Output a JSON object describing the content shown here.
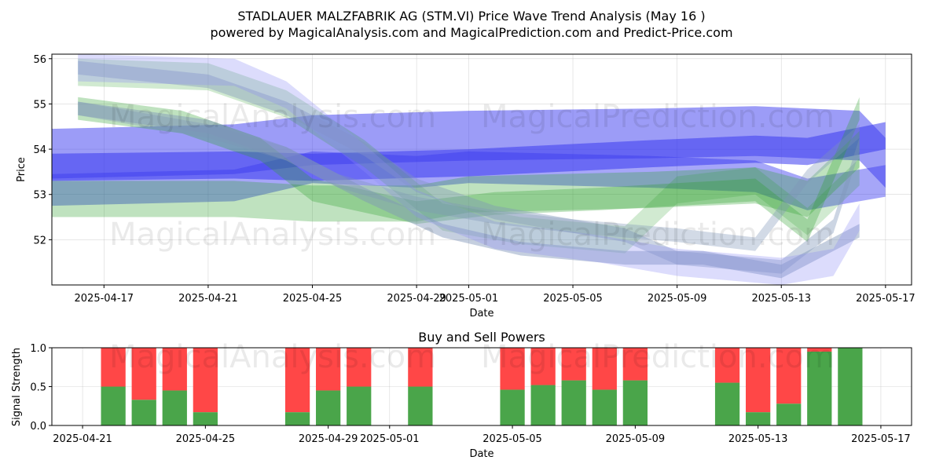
{
  "title_line1": "STADLAUER MALZFABRIK AG (STM.VI) Price Wave Trend Analysis (May 16 )",
  "title_line2": "powered by MagicalAnalysis.com and MagicalPrediction.com and Predict-Price.com",
  "watermarks": [
    "MagicalAnalysis.com",
    "MagicalPrediction.com"
  ],
  "colors": {
    "green": "#2ca02c",
    "blue": "#3a3af0",
    "blue_light": "#8a8af5",
    "gray_blue": "#7f95b8",
    "buy": "#4aa54a",
    "sell": "#ff4747"
  },
  "chart_data": [
    {
      "type": "area",
      "name": "price-wave-chart",
      "xlabel": "Date",
      "ylabel": "Price",
      "x_range": [
        "2025-04-15",
        "2025-05-18"
      ],
      "ylim": [
        51.0,
        56.1
      ],
      "x_ticks": [
        "2025-04-17",
        "2025-04-21",
        "2025-04-25",
        "2025-04-29",
        "2025-05-01",
        "2025-05-05",
        "2025-05-09",
        "2025-05-13",
        "2025-05-17"
      ],
      "y_ticks": [
        52,
        53,
        54,
        55,
        56
      ],
      "grid": true,
      "bands": [
        {
          "color": "blue",
          "alpha": 0.5,
          "points": [
            [
              "2025-04-15",
              53.9
            ],
            [
              "2025-04-22",
              54.0
            ],
            [
              "2025-04-25",
              54.2
            ],
            [
              "2025-05-01",
              54.3
            ],
            [
              "2025-05-08",
              54.35
            ],
            [
              "2025-05-12",
              54.4
            ],
            [
              "2025-05-16",
              54.3
            ],
            [
              "2025-05-17",
              53.7
            ]
          ],
          "halfwidth": 0.55
        },
        {
          "color": "blue",
          "alpha": 0.55,
          "points": [
            [
              "2025-04-15",
              53.6
            ],
            [
              "2025-04-22",
              53.65
            ],
            [
              "2025-04-25",
              53.6
            ],
            [
              "2025-05-01",
              53.7
            ],
            [
              "2025-05-08",
              53.9
            ],
            [
              "2025-05-12",
              54.0
            ],
            [
              "2025-05-14",
              53.95
            ],
            [
              "2025-05-17",
              54.3
            ]
          ],
          "halfwidth": 0.3
        },
        {
          "color": "blue",
          "alpha": 0.45,
          "points": [
            [
              "2025-04-15",
              53.1
            ],
            [
              "2025-04-22",
              53.2
            ],
            [
              "2025-04-25",
              53.6
            ],
            [
              "2025-04-29",
              53.5
            ],
            [
              "2025-05-01",
              53.6
            ],
            [
              "2025-05-08",
              53.5
            ],
            [
              "2025-05-12",
              53.4
            ],
            [
              "2025-05-14",
              53.0
            ],
            [
              "2025-05-17",
              53.3
            ]
          ],
          "halfwidth": 0.35
        },
        {
          "color": "green",
          "alpha": 0.3,
          "points": [
            [
              "2025-04-15",
              52.9
            ],
            [
              "2025-04-22",
              52.9
            ],
            [
              "2025-04-25",
              52.8
            ],
            [
              "2025-04-29",
              52.8
            ],
            [
              "2025-05-01",
              53.0
            ],
            [
              "2025-05-08",
              53.1
            ],
            [
              "2025-05-12",
              53.2
            ],
            [
              "2025-05-14",
              52.9
            ],
            [
              "2025-05-16",
              54.0
            ]
          ],
          "halfwidth": 0.4
        },
        {
          "color": "green",
          "alpha": 0.3,
          "points": [
            [
              "2025-04-16",
              54.9
            ],
            [
              "2025-04-20",
              54.6
            ],
            [
              "2025-04-23",
              54.0
            ],
            [
              "2025-04-25",
              53.1
            ],
            [
              "2025-04-29",
              52.6
            ],
            [
              "2025-05-02",
              52.8
            ],
            [
              "2025-05-06",
              52.9
            ],
            [
              "2025-05-09",
              53.0
            ],
            [
              "2025-05-12",
              53.1
            ],
            [
              "2025-05-14",
              52.2
            ],
            [
              "2025-05-16",
              54.9
            ]
          ],
          "halfwidth": 0.25
        },
        {
          "color": "green",
          "alpha": 0.22,
          "points": [
            [
              "2025-04-16",
              55.7
            ],
            [
              "2025-04-21",
              55.6
            ],
            [
              "2025-04-24",
              55.0
            ],
            [
              "2025-04-27",
              53.9
            ],
            [
              "2025-04-30",
              52.5
            ],
            [
              "2025-05-03",
              52.2
            ],
            [
              "2025-05-07",
              52.0
            ],
            [
              "2025-05-09",
              53.1
            ],
            [
              "2025-05-12",
              53.3
            ],
            [
              "2025-05-14",
              52.4
            ],
            [
              "2025-05-16",
              53.5
            ]
          ],
          "halfwidth": 0.3
        },
        {
          "color": "gray_blue",
          "alpha": 0.45,
          "points": [
            [
              "2025-04-16",
              54.9
            ],
            [
              "2025-04-21",
              54.5
            ],
            [
              "2025-04-24",
              53.9
            ],
            [
              "2025-04-27",
              53.0
            ],
            [
              "2025-04-30",
              52.2
            ],
            [
              "2025-05-03",
              51.8
            ],
            [
              "2025-05-07",
              51.6
            ],
            [
              "2025-05-10",
              51.6
            ],
            [
              "2025-05-13",
              51.3
            ],
            [
              "2025-05-15",
              51.9
            ],
            [
              "2025-05-16",
              52.2
            ]
          ],
          "halfwidth": 0.15
        },
        {
          "color": "gray_blue",
          "alpha": 0.4,
          "points": [
            [
              "2025-04-16",
              55.8
            ],
            [
              "2025-04-21",
              55.5
            ],
            [
              "2025-04-24",
              54.9
            ],
            [
              "2025-04-27",
              54.0
            ],
            [
              "2025-04-29",
              53.2
            ],
            [
              "2025-05-02",
              52.6
            ],
            [
              "2025-05-07",
              52.1
            ],
            [
              "2025-05-09",
              51.6
            ],
            [
              "2025-05-13",
              51.4
            ],
            [
              "2025-05-15",
              52.3
            ],
            [
              "2025-05-16",
              54.1
            ]
          ],
          "halfwidth": 0.15
        },
        {
          "color": "blue_light",
          "alpha": 0.3,
          "points": [
            [
              "2025-04-16",
              55.8
            ],
            [
              "2025-04-22",
              55.7
            ],
            [
              "2025-04-24",
              55.2
            ],
            [
              "2025-04-27",
              53.8
            ],
            [
              "2025-04-29",
              52.8
            ],
            [
              "2025-05-02",
              52.1
            ],
            [
              "2025-05-06",
              51.8
            ],
            [
              "2025-05-09",
              51.5
            ],
            [
              "2025-05-13",
              51.3
            ],
            [
              "2025-05-15",
              51.5
            ],
            [
              "2025-05-16",
              52.5
            ]
          ],
          "halfwidth": 0.3
        },
        {
          "color": "gray_blue",
          "alpha": 0.35,
          "points": [
            [
              "2025-04-16",
              54.9
            ],
            [
              "2025-04-21",
              54.4
            ],
            [
              "2025-04-24",
              53.9
            ],
            [
              "2025-04-26",
              53.3
            ],
            [
              "2025-04-29",
              52.8
            ],
            [
              "2025-05-02",
              52.5
            ],
            [
              "2025-05-05",
              52.3
            ],
            [
              "2025-05-09",
              52.1
            ],
            [
              "2025-05-12",
              51.9
            ],
            [
              "2025-05-14",
              53.4
            ],
            [
              "2025-05-16",
              54.4
            ]
          ],
          "halfwidth": 0.15
        }
      ]
    },
    {
      "type": "bar",
      "name": "buy-sell-powers-chart",
      "title": "Buy and Sell Powers",
      "xlabel": "Date",
      "ylabel": "Signal Strength",
      "x_range": [
        "2025-04-20",
        "2025-05-18"
      ],
      "ylim": [
        0,
        1.0
      ],
      "x_ticks": [
        "2025-04-21",
        "2025-04-25",
        "2025-04-29",
        "2025-05-01",
        "2025-05-05",
        "2025-05-09",
        "2025-05-13",
        "2025-05-17"
      ],
      "y_ticks": [
        0.0,
        0.5,
        1.0
      ],
      "grid": true,
      "series": [
        {
          "name": "Buy",
          "color": "buy"
        },
        {
          "name": "Sell",
          "color": "sell"
        }
      ],
      "categories": [
        "2025-04-22",
        "2025-04-23",
        "2025-04-24",
        "2025-04-25",
        "2025-04-28",
        "2025-04-29",
        "2025-04-30",
        "2025-05-02",
        "2025-05-05",
        "2025-05-06",
        "2025-05-07",
        "2025-05-08",
        "2025-05-09",
        "2025-05-12",
        "2025-05-13",
        "2025-05-14",
        "2025-05-15",
        "2025-05-16"
      ],
      "buy": [
        0.5,
        0.33,
        0.45,
        0.17,
        0.17,
        0.45,
        0.5,
        0.5,
        0.46,
        0.52,
        0.58,
        0.46,
        0.58,
        0.55,
        0.17,
        0.28,
        0.95,
        1.0
      ]
    }
  ]
}
